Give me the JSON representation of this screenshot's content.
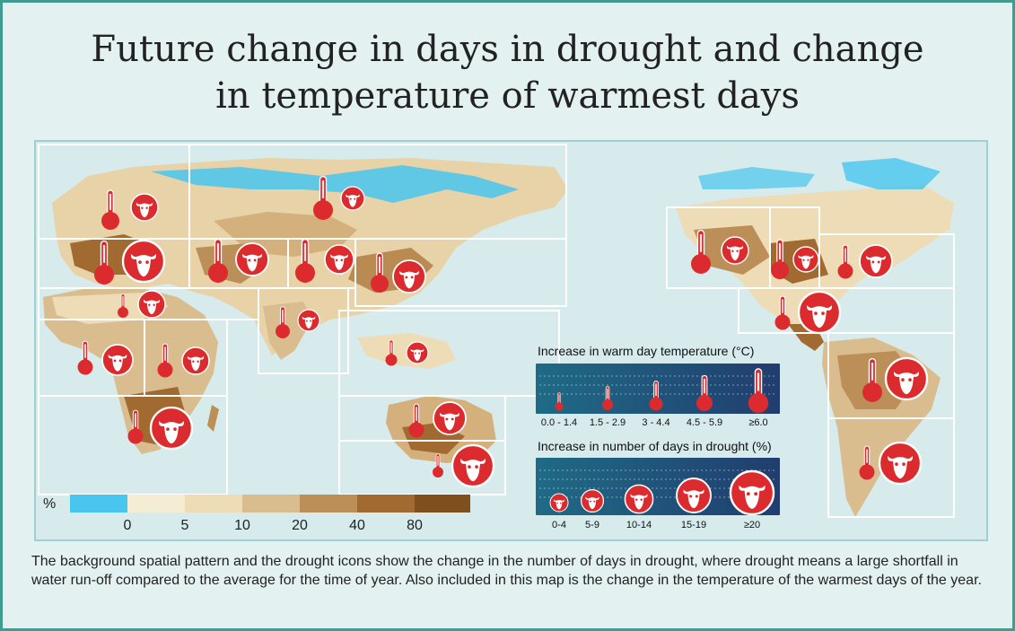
{
  "title": {
    "line1": "Future change in days in drought and change",
    "line2": "in temperature of warmest days"
  },
  "scale": {
    "unit_label": "%",
    "colors": [
      "#48c6ee",
      "#f5ecd4",
      "#eddcb6",
      "#d9bd8f",
      "#bb8f57",
      "#a06a30",
      "#7f4f1e"
    ],
    "tick_labels": [
      "0",
      "5",
      "10",
      "20",
      "40",
      "80"
    ]
  },
  "legend_temp": {
    "title": "Increase in warm day temperature (°C)",
    "labels": [
      "0.0 - 1.4",
      "1.5 - 2.9",
      "3 - 4.4",
      "4.5 - 5.9",
      "≥6.0"
    ]
  },
  "legend_drought": {
    "title": "Increase in number of days in drought (%)",
    "labels": [
      "0-4",
      "5-9",
      "10-14",
      "15-19",
      "≥20"
    ]
  },
  "caption": "The background spatial pattern and the drought icons show the change in the number of days in drought, where drought means a large shortfall in water run-off compared to the average for the time of year. Also included in this map is the change in the temperature of the warmest days of the year.",
  "colors": {
    "frame": "#3f9c8f",
    "icon_red": "#dc2b2e",
    "legend_dark": "#1d3f6b"
  },
  "regions": [
    {
      "name": "northern-europe",
      "temp_class": 3,
      "drought_class": 2
    },
    {
      "name": "north-asia",
      "temp_class": 4,
      "drought_class": 1
    },
    {
      "name": "mediterranean",
      "temp_class": 4,
      "drought_class": 5
    },
    {
      "name": "central-asia",
      "temp_class": 4,
      "drought_class": 3
    },
    {
      "name": "tibetan-plateau",
      "temp_class": 4,
      "drought_class": 2
    },
    {
      "name": "east-asia",
      "temp_class": 4,
      "drought_class": 3
    },
    {
      "name": "sahara",
      "temp_class": 2,
      "drought_class": 2
    },
    {
      "name": "south-asia",
      "temp_class": 3,
      "drought_class": 1
    },
    {
      "name": "west-africa",
      "temp_class": 3,
      "drought_class": 3
    },
    {
      "name": "east-africa",
      "temp_class": 3,
      "drought_class": 2
    },
    {
      "name": "southern-africa",
      "temp_class": 3,
      "drought_class": 5
    },
    {
      "name": "southeast-asia",
      "temp_class": 2,
      "drought_class": 1
    },
    {
      "name": "north-australia",
      "temp_class": 3,
      "drought_class": 3
    },
    {
      "name": "south-australia",
      "temp_class": 2,
      "drought_class": 4
    },
    {
      "name": "western-north-america",
      "temp_class": 4,
      "drought_class": 2
    },
    {
      "name": "central-north-america",
      "temp_class": 4,
      "drought_class": 2
    },
    {
      "name": "eastern-north-america",
      "temp_class": 3,
      "drought_class": 3
    },
    {
      "name": "central-america",
      "temp_class": 3,
      "drought_class": 4
    },
    {
      "name": "amazon",
      "temp_class": 4,
      "drought_class": 5
    },
    {
      "name": "southern-south-america",
      "temp_class": 3,
      "drought_class": 4
    }
  ]
}
